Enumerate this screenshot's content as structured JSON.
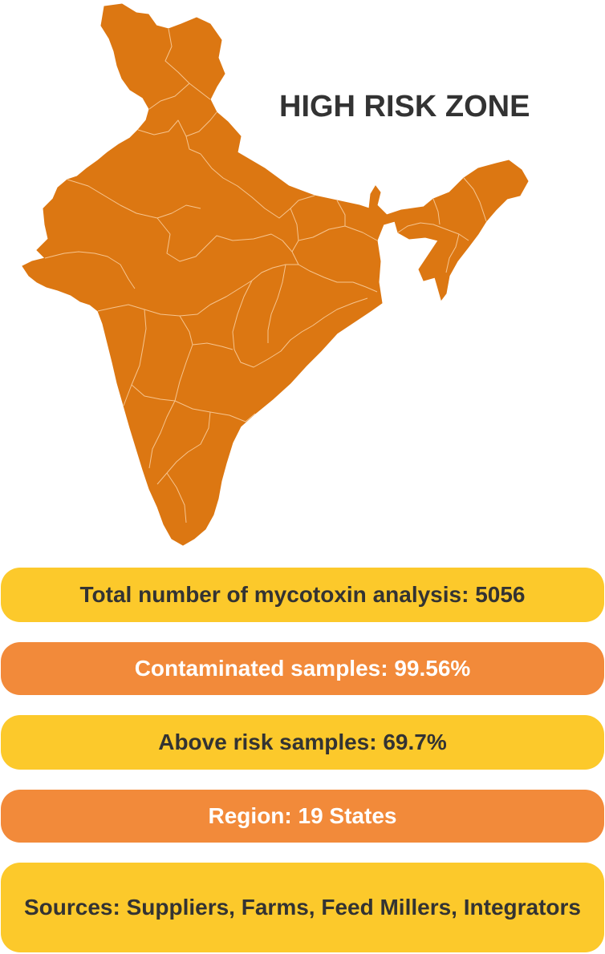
{
  "map": {
    "region_fill": "#dc7712",
    "border_color": "#f6c48e"
  },
  "zone_title": "HIGH RISK ZONE",
  "stats": [
    {
      "label": "Total number of mycotoxin analysis: 5056",
      "color": "#fcc92b"
    },
    {
      "label": "Contaminated samples: 99.56%",
      "color": "#f28a3a"
    },
    {
      "label": "Above risk samples: 69.7%",
      "color": "#fcc92b"
    },
    {
      "label": "Region: 19 States",
      "color": "#f28a3a"
    },
    {
      "label": "Sources: Suppliers, Farms, Feed Millers, Integrators",
      "color": "#fcc92b"
    }
  ]
}
